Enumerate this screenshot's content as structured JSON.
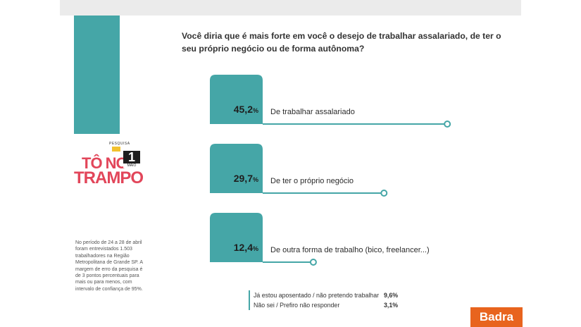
{
  "survey": {
    "question": "Você diria que é mais forte em você o desejo de trabalhar assalariado, de ter o seu próprio negócio ou de forma autônoma?",
    "logo": {
      "small": "PESQUISA",
      "line1": "TÔ NO",
      "line2": "TRAMPO",
      "cal_number": "1",
      "cal_month": "MAIO"
    },
    "methodology_note": "No período de 24 a 28 de abril foram entrevistados 1.503 trabalhadores na Região Metropolitana de Grande SP. A margem de erro da pesquisa é de 3 pontos percentuais para mais ou para menos, com intervalo de confiança de 95%.",
    "brand": "Badra"
  },
  "colors": {
    "accent": "#45a6a7",
    "brand": "#e8641e",
    "logo_red": "#e2465a"
  },
  "chart_data": {
    "type": "bar",
    "orientation": "horizontal",
    "categories": [
      "De trabalhar assalariado",
      "De ter o próprio negócio",
      "De outra forma de trabalho (bico, freelancer...)"
    ],
    "values": [
      45.2,
      29.7,
      12.4
    ],
    "value_labels": [
      "45,2",
      "29,7",
      "12,4"
    ],
    "unit": "%",
    "title": "Você diria que é mais forte em você o desejo de trabalhar assalariado, de ter o seu próprio negócio ou de forma autônoma?",
    "other_responses": [
      {
        "label": "Já estou aposentado / não pretendo trabalhar",
        "value": "9,6",
        "unit": "%"
      },
      {
        "label": "Não sei / Prefiro não responder",
        "value": "3,1",
        "unit": "%"
      }
    ]
  }
}
